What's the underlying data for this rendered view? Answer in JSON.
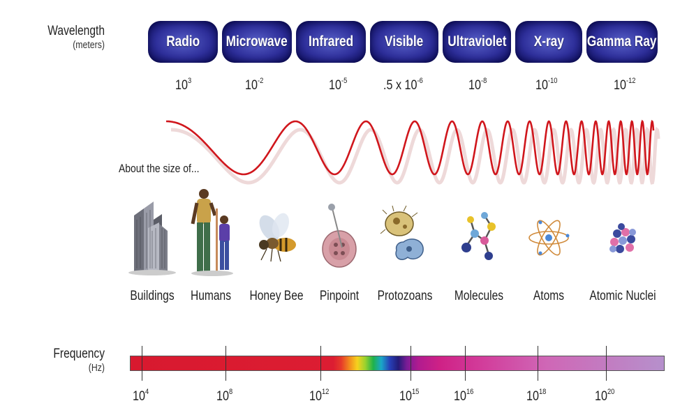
{
  "header": {
    "wavelength_label": "Wavelength",
    "wavelength_unit": "(meters)",
    "frequency_label": "Frequency",
    "frequency_unit": "(Hz)",
    "about_size_label": "About the size of..."
  },
  "bands": [
    {
      "name": "Radio"
    },
    {
      "name": "Microwave"
    },
    {
      "name": "Infrared"
    },
    {
      "name": "Visible"
    },
    {
      "name": "Ultraviolet"
    },
    {
      "name": "X-ray"
    },
    {
      "name": "Gamma Ray"
    }
  ],
  "wavelengths": [
    {
      "prefix": "",
      "base": "10",
      "exp": "3"
    },
    {
      "prefix": "",
      "base": "10",
      "exp": "-2"
    },
    {
      "prefix": "",
      "base": "10",
      "exp": "-5"
    },
    {
      "prefix": ".5 x ",
      "base": "10",
      "exp": "-6"
    },
    {
      "prefix": "",
      "base": "10",
      "exp": "-8"
    },
    {
      "prefix": "",
      "base": "10",
      "exp": "-10"
    },
    {
      "prefix": "",
      "base": "10",
      "exp": "-12"
    }
  ],
  "size_objects": [
    {
      "label": "Buildings",
      "icon": "buildings-icon"
    },
    {
      "label": "Humans",
      "icon": "humans-icon"
    },
    {
      "label": "Honey Bee",
      "icon": "honey-bee-icon"
    },
    {
      "label": "Pinpoint",
      "icon": "pinpoint-icon"
    },
    {
      "label": "Protozoans",
      "icon": "protozoans-icon"
    },
    {
      "label": "Molecules",
      "icon": "molecules-icon"
    },
    {
      "label": "Atoms",
      "icon": "atoms-icon"
    },
    {
      "label": "Atomic Nuclei",
      "icon": "atomic-nuclei-icon"
    }
  ],
  "frequencies": [
    {
      "base": "10",
      "exp": "4"
    },
    {
      "base": "10",
      "exp": "8"
    },
    {
      "base": "10",
      "exp": "12"
    },
    {
      "base": "10",
      "exp": "15"
    },
    {
      "base": "10",
      "exp": "16"
    },
    {
      "base": "10",
      "exp": "18"
    },
    {
      "base": "10",
      "exp": "20"
    }
  ],
  "colors": {
    "band_fill": "#2e2f9a",
    "wave": "#d0161c",
    "frequency_start": "#d8192f",
    "frequency_end": "#b690cc"
  }
}
